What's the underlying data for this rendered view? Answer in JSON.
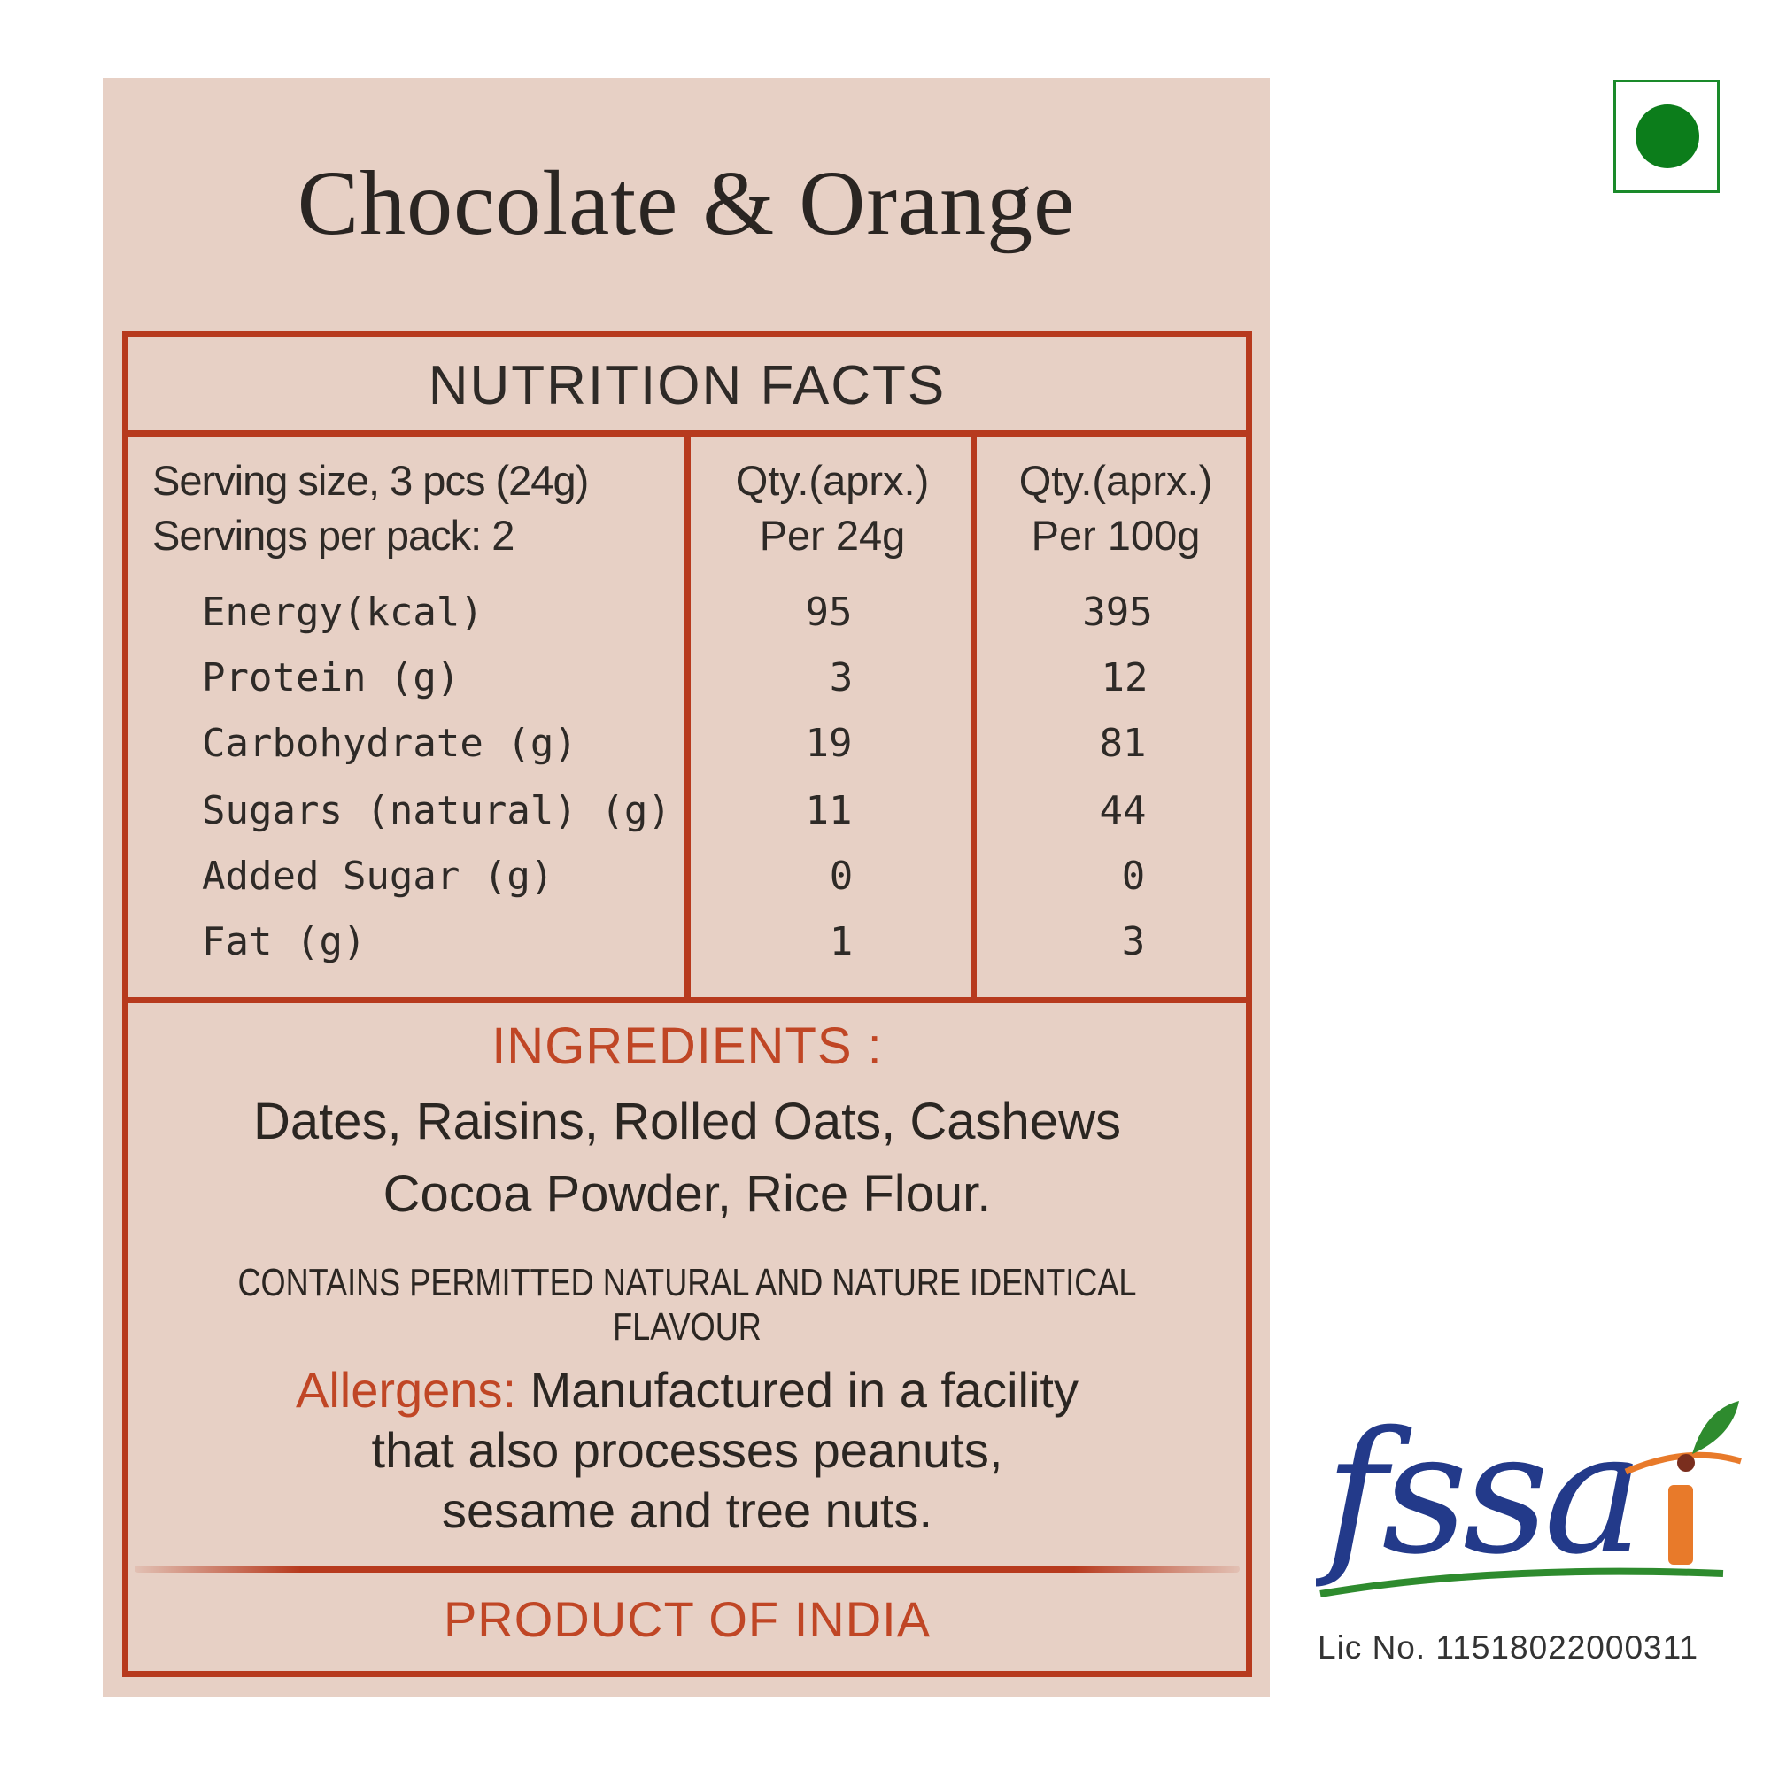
{
  "title": "Chocolate & Orange",
  "nutrition": {
    "heading": "NUTRITION FACTS",
    "serving_size": "Serving size, 3 pcs  (24g)",
    "servings_per_pack": "Servings per pack: 2",
    "col1_line1": "Qty.(aprx.)",
    "col1_line2": "Per 24g",
    "col2_line1": "Qty.(aprx.)",
    "col2_line2": "Per 100g",
    "rows": [
      {
        "label": "Energy(kcal)",
        "per24": "95",
        "per100": "395"
      },
      {
        "label": "Protein (g)",
        "per24": "3",
        "per100": "12"
      },
      {
        "label": "Carbohydrate (g)",
        "per24": "19",
        "per100": "81"
      },
      {
        "label": "Sugars (natural) (g)",
        "per24": "11",
        "per100": "44"
      },
      {
        "label": "Added Sugar (g)",
        "per24": "0",
        "per100": "0"
      },
      {
        "label": "Fat (g)",
        "per24": "1",
        "per100": "3"
      }
    ]
  },
  "ingredients": {
    "heading": "INGREDIENTS :",
    "line1": "Dates, Raisins, Rolled Oats, Cashews",
    "line2": "Cocoa Powder, Rice Flour."
  },
  "contains": "CONTAINS PERMITTED NATURAL AND NATURE IDENTICAL FLAVOUR",
  "allergens": {
    "label": "Allergens:",
    "line1": " Manufactured in a facility",
    "line2": "that also processes peanuts,",
    "line3": "sesame and tree nuts."
  },
  "origin": "PRODUCT OF INDIA",
  "fssai": {
    "logo_text": "fssai",
    "license": "Lic No. 11518022000311"
  },
  "colors": {
    "panel": "#e7d0c5",
    "border": "#b73a1e",
    "accent": "#c04625",
    "veg_green": "#0c7d1b",
    "fssai_blue": "#233a8a",
    "fssai_orange": "#e87a2a",
    "fssai_green": "#2e8b2e"
  },
  "icons": [
    "veg-mark-icon",
    "fssai-logo"
  ]
}
